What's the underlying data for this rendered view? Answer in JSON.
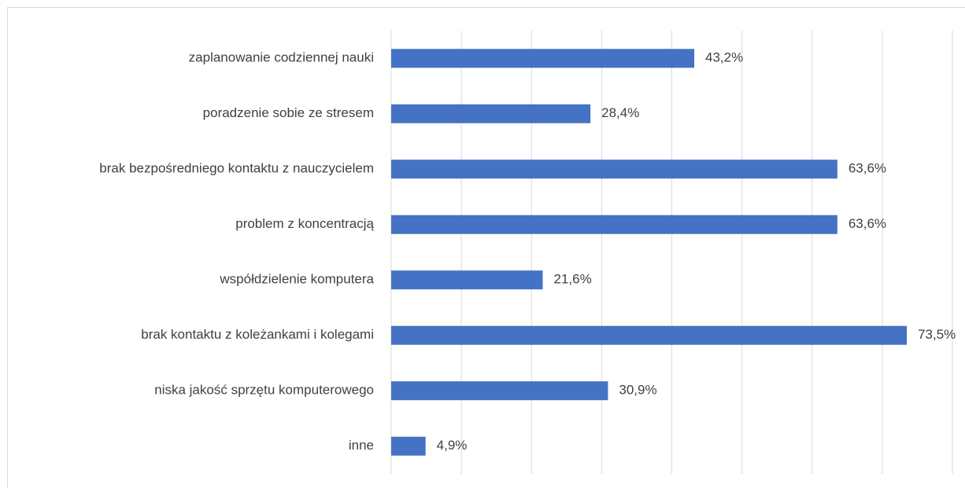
{
  "chart_data": {
    "type": "barh",
    "categories": [
      "zaplanowanie codziennej nauki",
      "poradzenie sobie ze stresem",
      "brak bezpośredniego kontaktu z nauczycielem",
      "problem z koncentracją",
      "współdzielenie komputera",
      "brak kontaktu z koleżankami i kolegami",
      "niska jakość sprzętu komputerowego",
      "inne"
    ],
    "values": [
      43.2,
      28.4,
      63.6,
      63.6,
      21.6,
      73.5,
      30.9,
      4.9
    ],
    "value_labels": [
      "43,2%",
      "28,4%",
      "63,6%",
      "63,6%",
      "21,6%",
      "73,5%",
      "30,9%",
      "4,9%"
    ],
    "color": "#4472c4",
    "xlim": [
      0,
      80
    ],
    "xticks": [
      0,
      10,
      20,
      30,
      40,
      50,
      60,
      70,
      80
    ],
    "grid": true
  }
}
